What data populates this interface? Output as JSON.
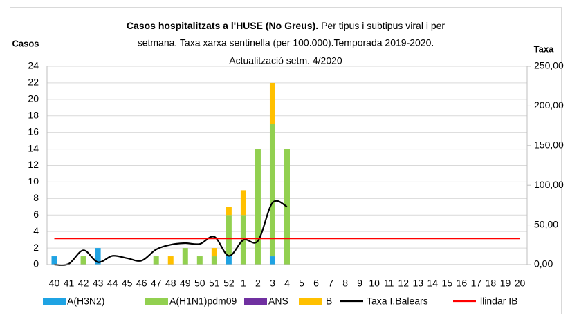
{
  "chart_data": {
    "type": "bar",
    "title": "Casos hospitalitzats a l'HUSE (No Greus).",
    "subtitle": [
      "Per tipus i subtipus viral i per",
      "setmana. Taxa xarxa sentinella (per 100.000).Temporada 2019-2020.",
      "Actualització setm. 4/2020"
    ],
    "y_label": "Casos",
    "y2_label": "Taxa",
    "categories": [
      "40",
      "41",
      "42",
      "43",
      "44",
      "45",
      "46",
      "47",
      "48",
      "49",
      "50",
      "51",
      "52",
      "1",
      "2",
      "3",
      "4",
      "5",
      "6",
      "7",
      "8",
      "9",
      "10",
      "11",
      "12",
      "13",
      "14",
      "15",
      "16",
      "17",
      "18",
      "19",
      "20"
    ],
    "ylim": [
      0,
      24
    ],
    "yticks": [
      0,
      2,
      4,
      6,
      8,
      10,
      12,
      14,
      16,
      18,
      20,
      22,
      24
    ],
    "y2lim": [
      0,
      250
    ],
    "y2ticks": [
      {
        "value": 0,
        "label": "0,00"
      },
      {
        "value": 50,
        "label": "50,00"
      },
      {
        "value": 100,
        "label": "100,00"
      },
      {
        "value": 150,
        "label": "150,00"
      },
      {
        "value": 200,
        "label": "200,00"
      },
      {
        "value": 250,
        "label": "250,00"
      }
    ],
    "grid": true,
    "legend": "bottom",
    "series": [
      {
        "name": "A(H3N2)",
        "color": "#1fa3e3",
        "type": "bar",
        "values": [
          1,
          0,
          0,
          2,
          0,
          0,
          0,
          0,
          0,
          0,
          0,
          0,
          1,
          0,
          0,
          1,
          0,
          0,
          0,
          0,
          0,
          0,
          0,
          0,
          0,
          0,
          0,
          0,
          0,
          0,
          0,
          0,
          0
        ]
      },
      {
        "name": "A(H1N1)pdm09",
        "color": "#92d050",
        "type": "bar",
        "values": [
          0,
          0,
          1,
          0,
          0,
          0,
          0,
          1,
          0,
          2,
          1,
          1,
          5,
          6,
          14,
          16,
          14,
          0,
          0,
          0,
          0,
          0,
          0,
          0,
          0,
          0,
          0,
          0,
          0,
          0,
          0,
          0,
          0
        ]
      },
      {
        "name": "ANS",
        "color": "#7030a0",
        "type": "bar",
        "values": [
          0,
          0,
          0,
          0,
          0,
          0,
          0,
          0,
          0,
          0,
          0,
          0,
          0,
          0,
          0,
          0,
          0,
          0,
          0,
          0,
          0,
          0,
          0,
          0,
          0,
          0,
          0,
          0,
          0,
          0,
          0,
          0,
          0
        ]
      },
      {
        "name": "B",
        "color": "#ffc000",
        "type": "bar",
        "values": [
          0,
          0,
          0,
          0,
          0,
          0,
          0,
          0,
          1,
          0,
          0,
          1,
          1,
          3,
          0,
          5,
          0,
          0,
          0,
          0,
          0,
          0,
          0,
          0,
          0,
          0,
          0,
          0,
          0,
          0,
          0,
          0,
          0
        ]
      },
      {
        "name": "Taxa I.Balears",
        "color": "#000000",
        "type": "line",
        "axis": "y2",
        "smooth": true,
        "values": [
          0,
          1,
          18,
          3,
          11,
          8,
          5,
          19,
          25,
          27,
          26,
          35,
          11,
          31,
          30,
          78,
          73,
          null,
          null,
          null,
          null,
          null,
          null,
          null,
          null,
          null,
          null,
          null,
          null,
          null,
          null,
          null,
          null
        ]
      },
      {
        "name": "llindar IB",
        "color": "#ff0000",
        "type": "line",
        "axis": "y2",
        "values": [
          33,
          33,
          33,
          33,
          33,
          33,
          33,
          33,
          33,
          33,
          33,
          33,
          33,
          33,
          33,
          33,
          33,
          33,
          33,
          33,
          33,
          33,
          33,
          33,
          33,
          33,
          33,
          33,
          33,
          33,
          33,
          33,
          33
        ]
      }
    ]
  }
}
